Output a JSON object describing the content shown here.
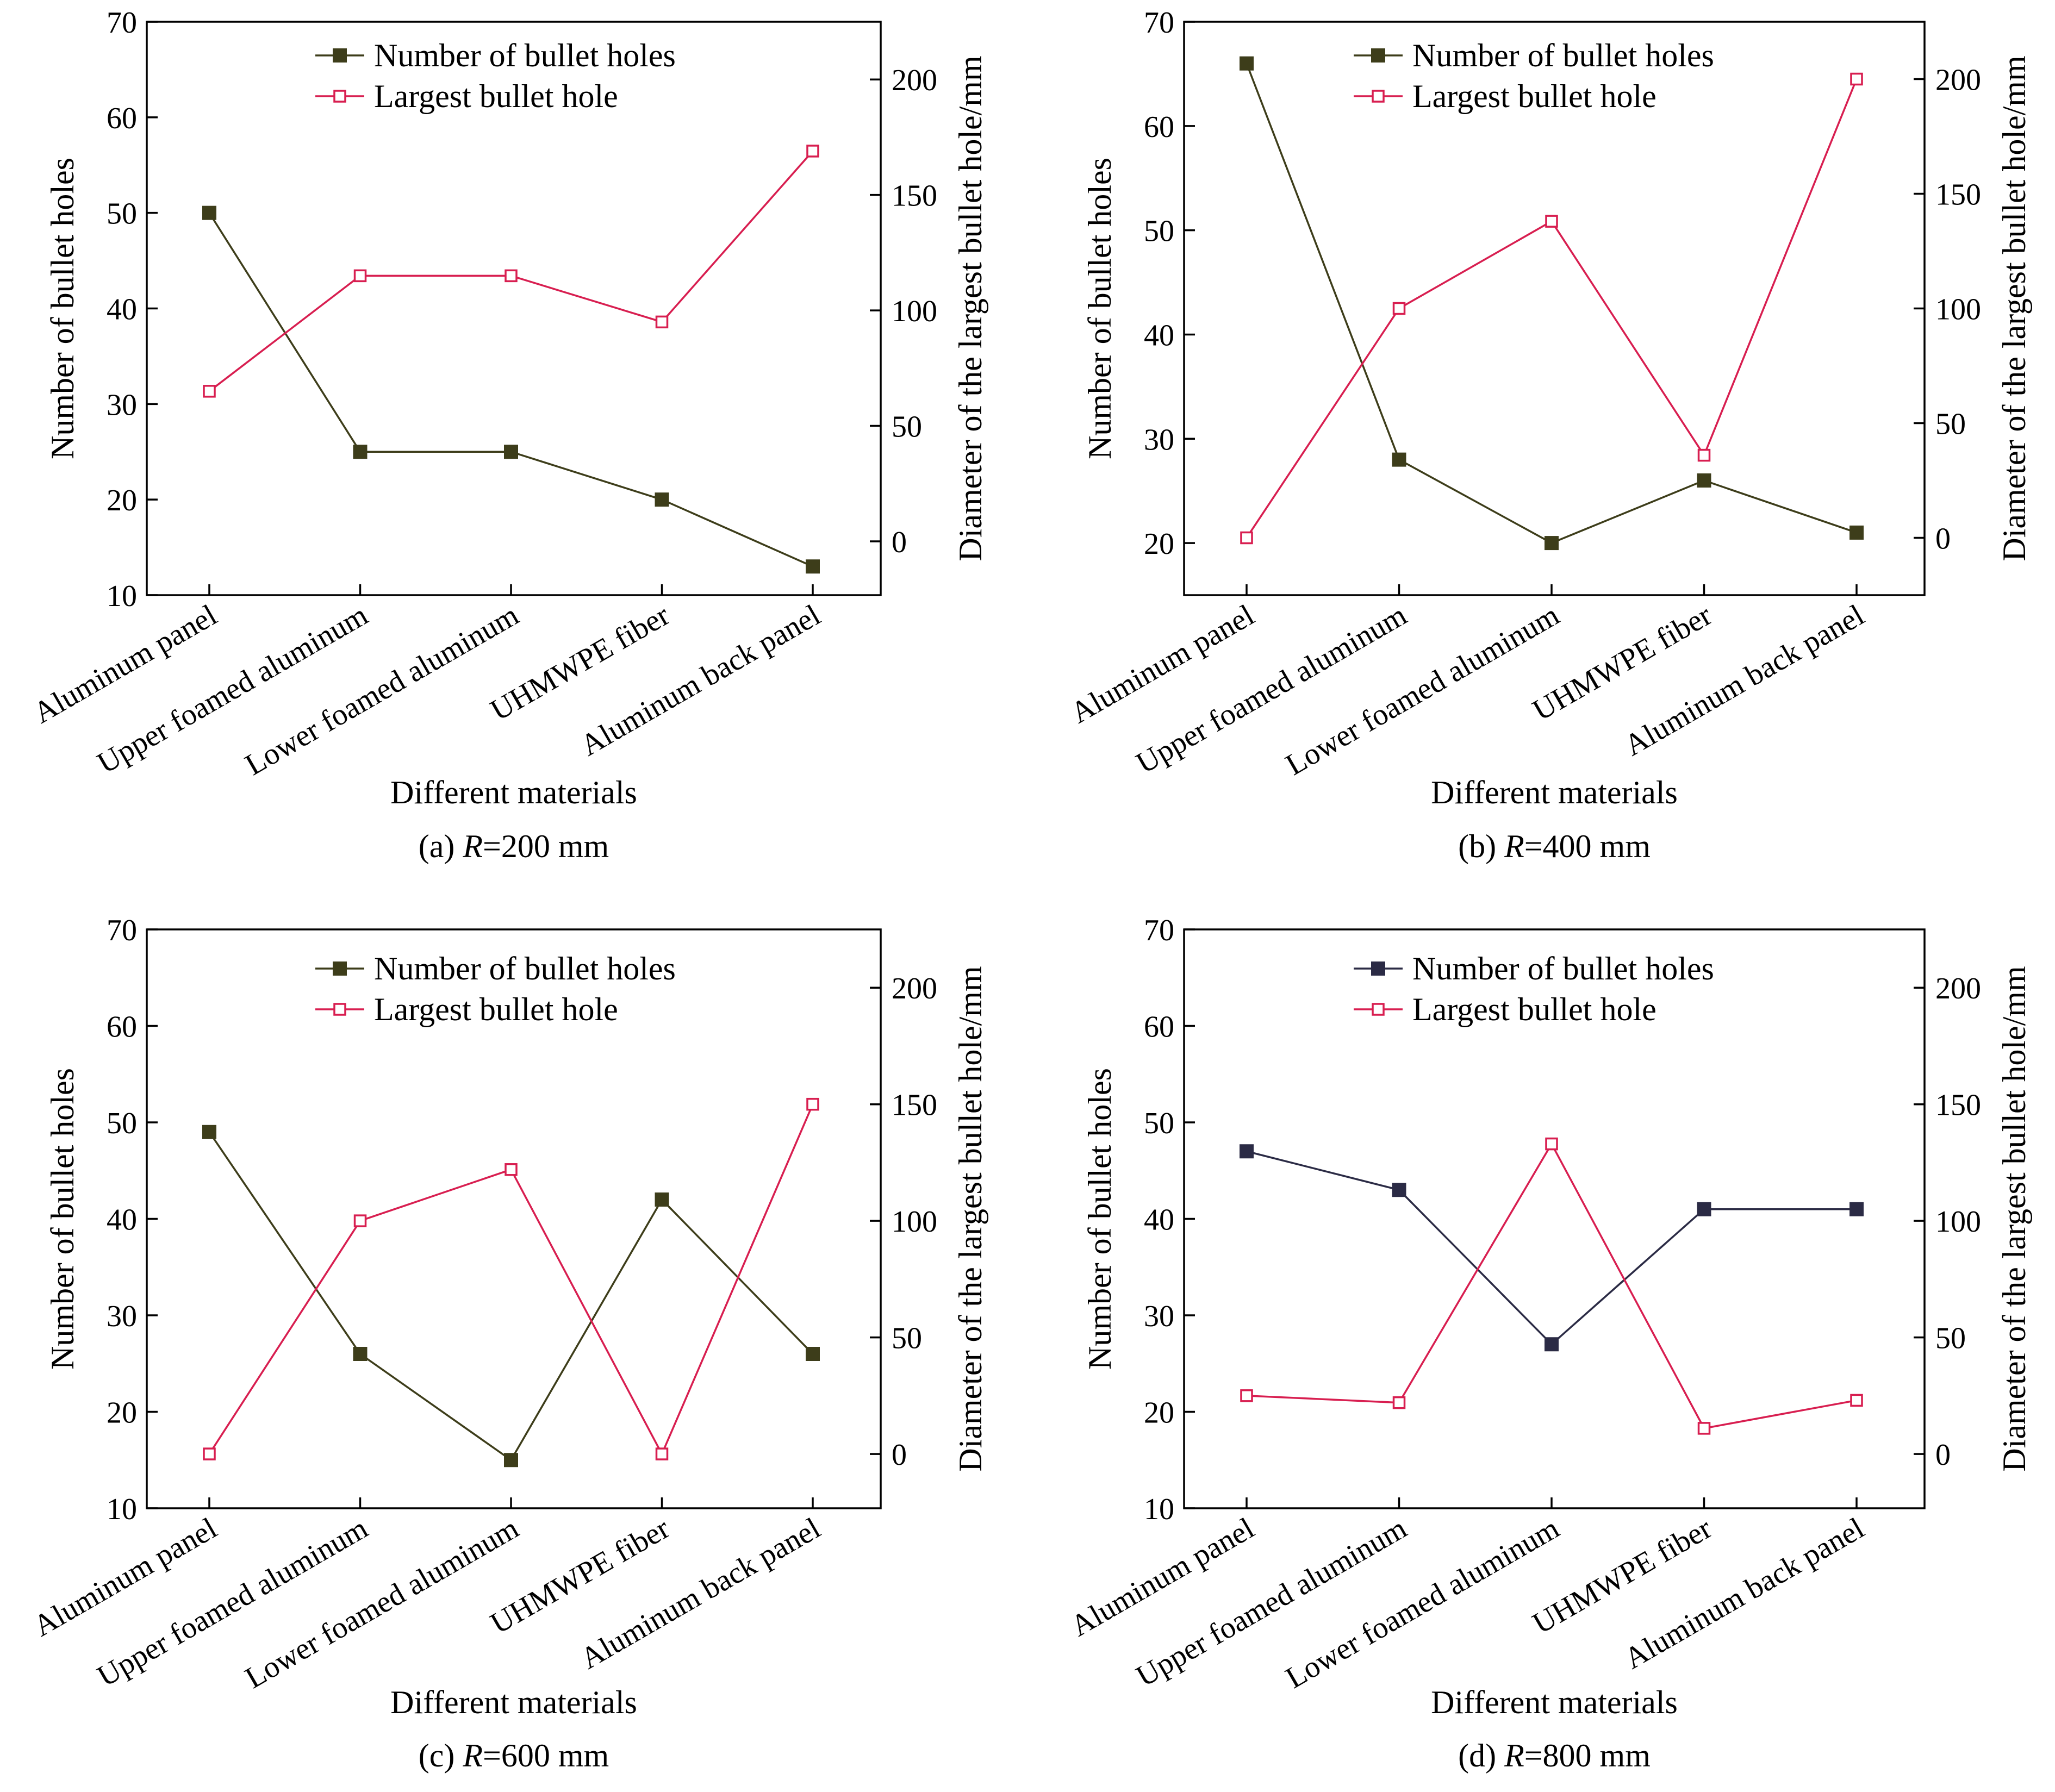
{
  "figure": {
    "colors": {
      "count_olive": "#3d3d1a",
      "count_navy": "#2b2b45",
      "largest_red": "#d81e50",
      "axis": "#000000"
    },
    "legend": [
      "Number of bullet holes",
      "Largest bullet hole"
    ]
  },
  "chart_data": [
    {
      "type": "line",
      "panel_label": "(a) ",
      "panel_var": "R",
      "panel_value": "=200 mm",
      "categories": [
        "Aluminum panel",
        "Upper foamed aluminum",
        "Lower foamed aluminum",
        "UHMWPE fiber",
        "Aluminum back panel"
      ],
      "xlabel": "Different materials",
      "ylabel_left": "Number of bullet holes",
      "ylabel_right": "Diameter of the largest bullet hole/mm",
      "ylim_left": [
        10,
        70
      ],
      "ylim_right": [
        -23.3,
        225
      ],
      "yticks_left": [
        10,
        20,
        30,
        40,
        50,
        60,
        70
      ],
      "yticks_right": [
        0,
        50,
        100,
        150,
        200
      ],
      "grid": false,
      "legend_position": "top-center",
      "series": [
        {
          "name": "Number of bullet holes",
          "axis": "left",
          "marker": "filled-square",
          "color_key": "count_olive",
          "values": [
            50,
            25,
            25,
            20,
            13
          ]
        },
        {
          "name": "Largest bullet hole",
          "axis": "right",
          "marker": "open-square",
          "color_key": "largest_red",
          "values": [
            65,
            115,
            115,
            95,
            169
          ]
        }
      ]
    },
    {
      "type": "line",
      "panel_label": "(b) ",
      "panel_var": "R",
      "panel_value": "=400 mm",
      "categories": [
        "Aluminum panel",
        "Upper foamed aluminum",
        "Lower foamed aluminum",
        "UHMWPE fiber",
        "Aluminum back panel"
      ],
      "xlabel": "Different materials",
      "ylabel_left": "Number of bullet holes",
      "ylabel_right": "Diameter of the largest bullet hole/mm",
      "ylim_left": [
        15,
        70
      ],
      "ylim_right": [
        -25,
        225
      ],
      "yticks_left": [
        20,
        30,
        40,
        50,
        60,
        70
      ],
      "yticks_right": [
        0,
        50,
        100,
        150,
        200
      ],
      "grid": false,
      "legend_position": "top-center",
      "series": [
        {
          "name": "Number of bullet holes",
          "axis": "left",
          "marker": "filled-square",
          "color_key": "count_olive",
          "values": [
            66,
            28,
            20,
            26,
            21
          ]
        },
        {
          "name": "Largest bullet hole",
          "axis": "right",
          "marker": "open-square",
          "color_key": "largest_red",
          "values": [
            0,
            100,
            138,
            36,
            200
          ]
        }
      ]
    },
    {
      "type": "line",
      "panel_label": "(c) ",
      "panel_var": "R",
      "panel_value": "=600 mm",
      "categories": [
        "Aluminum panel",
        "Upper foamed aluminum",
        "Lower foamed aluminum",
        "UHMWPE fiber",
        "Aluminum back panel"
      ],
      "xlabel": "Different materials",
      "ylabel_left": "Number of bullet holes",
      "ylabel_right": "Diameter of the largest bullet hole/mm",
      "ylim_left": [
        10,
        70
      ],
      "ylim_right": [
        -23.3,
        225
      ],
      "yticks_left": [
        10,
        20,
        30,
        40,
        50,
        60,
        70
      ],
      "yticks_right": [
        0,
        50,
        100,
        150,
        200
      ],
      "grid": false,
      "legend_position": "top-center",
      "series": [
        {
          "name": "Number of bullet holes",
          "axis": "left",
          "marker": "filled-square",
          "color_key": "count_olive",
          "values": [
            49,
            26,
            15,
            42,
            26
          ]
        },
        {
          "name": "Largest bullet hole",
          "axis": "right",
          "marker": "open-square",
          "color_key": "largest_red",
          "values": [
            0,
            100,
            122,
            0,
            150
          ]
        }
      ]
    },
    {
      "type": "line",
      "panel_label": "(d) ",
      "panel_var": "R",
      "panel_value": "=800 mm",
      "categories": [
        "Aluminum panel",
        "Upper foamed aluminum",
        "Lower foamed aluminum",
        "UHMWPE fiber",
        "Aluminum back panel"
      ],
      "xlabel": "Different materials",
      "ylabel_left": "Number of bullet holes",
      "ylabel_right": "Diameter of the largest bullet hole/mm",
      "ylim_left": [
        10,
        70
      ],
      "ylim_right": [
        -23.3,
        225
      ],
      "yticks_left": [
        10,
        20,
        30,
        40,
        50,
        60,
        70
      ],
      "yticks_right": [
        0,
        50,
        100,
        150,
        200
      ],
      "grid": false,
      "legend_position": "top-center",
      "series": [
        {
          "name": "Number of bullet holes",
          "axis": "left",
          "marker": "filled-square",
          "color_key": "count_navy",
          "values": [
            47,
            43,
            27,
            41,
            41
          ]
        },
        {
          "name": "Largest bullet hole",
          "axis": "right",
          "marker": "open-square",
          "color_key": "largest_red",
          "values": [
            25,
            22,
            133,
            11,
            23
          ]
        }
      ]
    }
  ]
}
